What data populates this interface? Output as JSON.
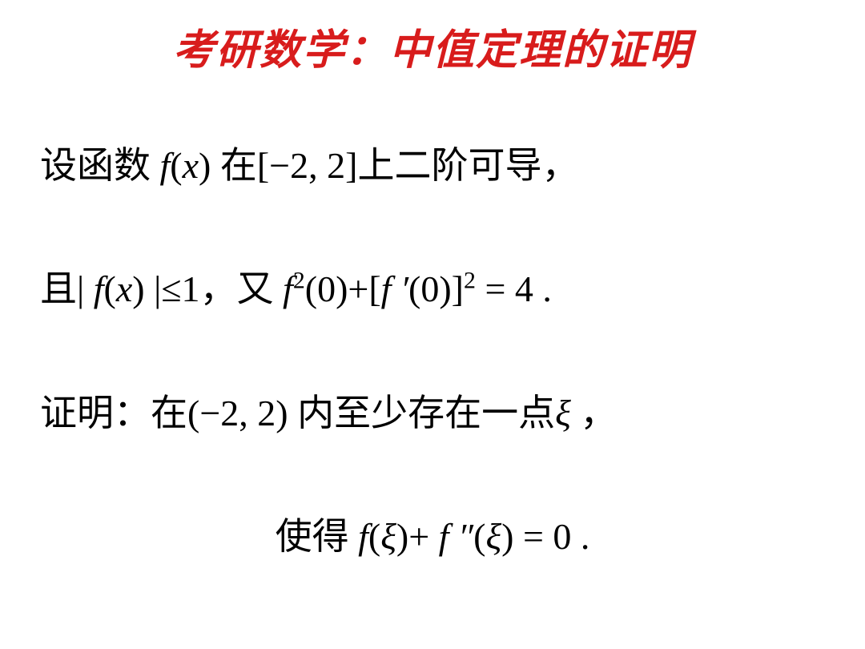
{
  "title": {
    "text": "考研数学：中值定理的证明",
    "color": "#d81c1c",
    "fontsize": 52,
    "fontfamily": "STKaiti, KaiTi, serif",
    "fontweight": "bold",
    "fontstyle": "italic"
  },
  "body": {
    "color": "#000000",
    "fontsize": 46,
    "lines": [
      {
        "segments": [
          {
            "text": "设函数 ",
            "type": "chinese"
          },
          {
            "text": "f",
            "type": "math"
          },
          {
            "text": "(",
            "type": "math-upright"
          },
          {
            "text": "x",
            "type": "math"
          },
          {
            "text": ") ",
            "type": "math-upright"
          },
          {
            "text": "在",
            "type": "chinese"
          },
          {
            "text": "[−2, 2]",
            "type": "math-upright"
          },
          {
            "text": "上二阶可导，",
            "type": "chinese"
          }
        ]
      },
      {
        "segments": [
          {
            "text": "且",
            "type": "chinese"
          },
          {
            "text": "| ",
            "type": "math-upright"
          },
          {
            "text": "f",
            "type": "math"
          },
          {
            "text": "(",
            "type": "math-upright"
          },
          {
            "text": "x",
            "type": "math"
          },
          {
            "text": ") |≤1",
            "type": "math-upright"
          },
          {
            "text": "，又 ",
            "type": "chinese"
          },
          {
            "text": "f",
            "type": "math"
          },
          {
            "text": "2",
            "type": "sup-math-upright"
          },
          {
            "text": "(0)+[",
            "type": "math-upright"
          },
          {
            "text": "f ′",
            "type": "math"
          },
          {
            "text": "(0)]",
            "type": "math-upright"
          },
          {
            "text": "2",
            "type": "sup-math-upright"
          },
          {
            "text": " = 4 .",
            "type": "math-upright"
          }
        ]
      },
      {
        "segments": [
          {
            "text": "证明：在",
            "type": "chinese"
          },
          {
            "text": "(−2, 2) ",
            "type": "math-upright"
          },
          {
            "text": "内至少存在一点",
            "type": "chinese"
          },
          {
            "text": "ξ",
            "type": "math"
          },
          {
            "text": " ，",
            "type": "chinese"
          }
        ]
      },
      {
        "center": true,
        "segments": [
          {
            "text": "使得 ",
            "type": "chinese"
          },
          {
            "text": "f",
            "type": "math"
          },
          {
            "text": "(",
            "type": "math-upright"
          },
          {
            "text": "ξ",
            "type": "math"
          },
          {
            "text": ")+ ",
            "type": "math-upright"
          },
          {
            "text": "f ″",
            "type": "math"
          },
          {
            "text": "(",
            "type": "math-upright"
          },
          {
            "text": "ξ",
            "type": "math"
          },
          {
            "text": ") = 0 .",
            "type": "math-upright"
          }
        ]
      }
    ]
  }
}
